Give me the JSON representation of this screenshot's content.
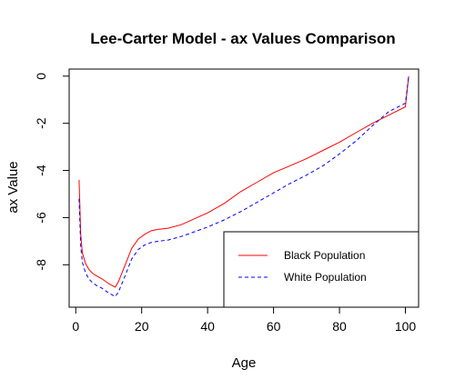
{
  "chart_data": {
    "type": "line",
    "title": "Lee-Carter Model - ax Values Comparison",
    "xlabel": "Age",
    "ylabel": "ax Value",
    "xlim": [
      -2,
      104
    ],
    "ylim": [
      -9.8,
      0.3
    ],
    "xticks": [
      0,
      20,
      40,
      60,
      80,
      100
    ],
    "yticks": [
      0,
      -2,
      -4,
      -6,
      -8
    ],
    "grid": false,
    "legend_position": "bottom-right",
    "series": [
      {
        "name": "Black Population",
        "color": "#ff0000",
        "dash": "solid",
        "x": [
          1,
          1.5,
          2,
          3,
          4,
          5,
          6,
          8,
          10,
          12,
          13,
          15,
          17,
          19,
          21,
          23,
          25,
          28,
          32,
          36,
          40,
          45,
          50,
          55,
          60,
          65,
          70,
          75,
          80,
          85,
          90,
          95,
          100,
          101
        ],
        "values": [
          -4.4,
          -6.7,
          -7.5,
          -7.95,
          -8.2,
          -8.35,
          -8.45,
          -8.6,
          -8.8,
          -8.95,
          -8.7,
          -8.0,
          -7.3,
          -6.9,
          -6.7,
          -6.55,
          -6.5,
          -6.45,
          -6.3,
          -6.05,
          -5.8,
          -5.4,
          -4.9,
          -4.5,
          -4.1,
          -3.8,
          -3.5,
          -3.15,
          -2.8,
          -2.4,
          -2.0,
          -1.65,
          -1.3,
          0.0
        ]
      },
      {
        "name": "White Population",
        "color": "#0000ff",
        "dash": "dashed",
        "x": [
          1,
          1.5,
          2,
          3,
          4,
          5,
          6,
          8,
          10,
          12,
          13,
          15,
          17,
          19,
          21,
          23,
          25,
          28,
          32,
          36,
          40,
          45,
          50,
          55,
          60,
          65,
          70,
          75,
          80,
          85,
          90,
          95,
          100,
          101
        ],
        "values": [
          -5.2,
          -7.2,
          -7.9,
          -8.35,
          -8.6,
          -8.75,
          -8.85,
          -9.0,
          -9.2,
          -9.35,
          -9.15,
          -8.45,
          -7.75,
          -7.35,
          -7.15,
          -7.05,
          -7.0,
          -6.95,
          -6.8,
          -6.6,
          -6.4,
          -6.1,
          -5.75,
          -5.35,
          -4.95,
          -4.55,
          -4.2,
          -3.8,
          -3.3,
          -2.75,
          -2.1,
          -1.5,
          -1.15,
          0.0
        ]
      }
    ]
  }
}
